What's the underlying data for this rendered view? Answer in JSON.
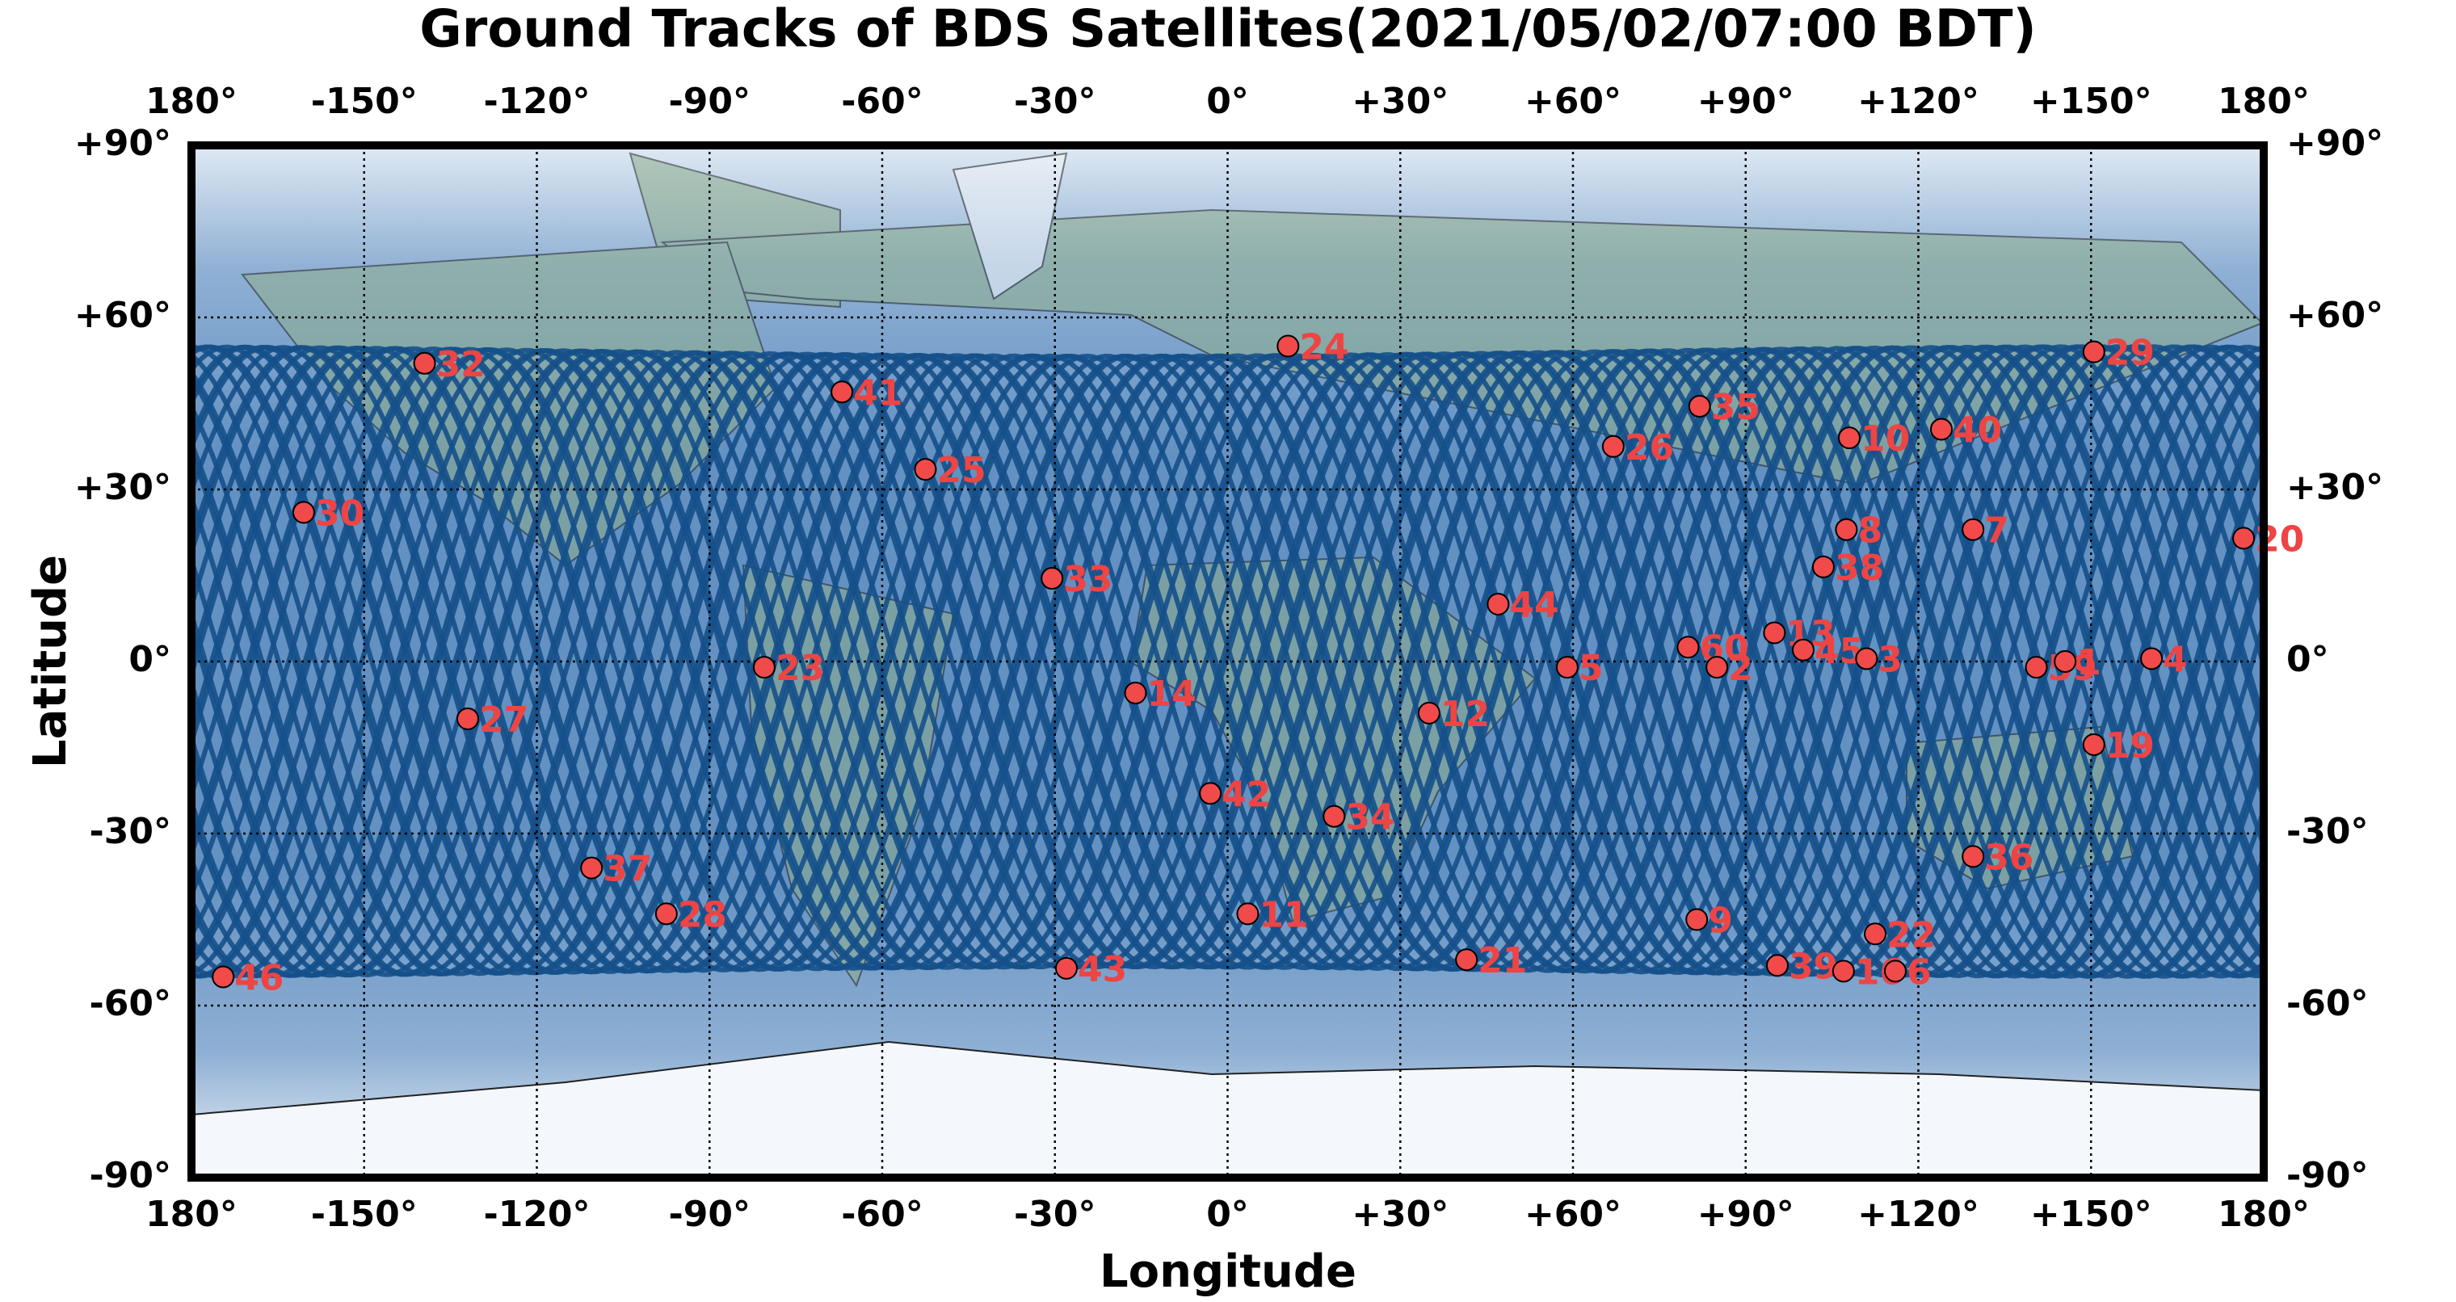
{
  "chart_data": {
    "type": "scatter",
    "title": "Ground Tracks of BDS Satellites(2021/05/02/07:00 BDT)",
    "x_label": "Longitude",
    "y_label": "Latitude",
    "xlim": [
      -180,
      180
    ],
    "ylim": [
      -90,
      90
    ],
    "xticks": [
      {
        "value": -180,
        "label": "180°"
      },
      {
        "value": -150,
        "label": "-150°"
      },
      {
        "value": -120,
        "label": "-120°"
      },
      {
        "value": -90,
        "label": "-90°"
      },
      {
        "value": -60,
        "label": "-60°"
      },
      {
        "value": -30,
        "label": "-30°"
      },
      {
        "value": 0,
        "label": "0°"
      },
      {
        "value": 30,
        "label": "+30°"
      },
      {
        "value": 60,
        "label": "+60°"
      },
      {
        "value": 90,
        "label": "+90°"
      },
      {
        "value": 120,
        "label": "+120°"
      },
      {
        "value": 150,
        "label": "+150°"
      },
      {
        "value": 180,
        "label": "180°"
      }
    ],
    "yticks": [
      {
        "value": -90,
        "label": "-90°"
      },
      {
        "value": -60,
        "label": "-60°"
      },
      {
        "value": -30,
        "label": "-30°"
      },
      {
        "value": 0,
        "label": "0°"
      },
      {
        "value": 30,
        "label": "+30°"
      },
      {
        "value": 60,
        "label": "+60°"
      },
      {
        "value": 90,
        "label": "+90°"
      }
    ],
    "grid": true,
    "point_color": "#f04a4a",
    "label_color": "#ee4444",
    "track_color": "#15508a",
    "labels": [
      "32",
      "41",
      "24",
      "29",
      "35",
      "10",
      "40",
      "26",
      "25",
      "30",
      "8",
      "7",
      "20",
      "38",
      "33",
      "44",
      "13",
      "60",
      "45",
      "2",
      "3",
      "4",
      "59",
      "1",
      "23",
      "5",
      "14",
      "12",
      "27",
      "19",
      "42",
      "34",
      "36",
      "37",
      "28",
      "11",
      "9",
      "22",
      "21",
      "39",
      "16",
      "6",
      "43",
      "46"
    ],
    "x": [
      -139.5,
      -67,
      10.5,
      150.5,
      82,
      108,
      124,
      67,
      -52.5,
      -160.5,
      107.5,
      129.5,
      176.5,
      103.5,
      -30.5,
      47,
      95,
      80,
      100,
      85,
      111,
      160.5,
      140.5,
      145.5,
      -80.5,
      59,
      -16,
      35,
      -132,
      150.5,
      -3,
      18.5,
      129.5,
      -110.5,
      -97.5,
      3.5,
      81.5,
      112.5,
      41.5,
      95.5,
      107,
      116,
      -28,
      -174.5
    ],
    "y": [
      52,
      47,
      55,
      54,
      44.5,
      39,
      40.5,
      37.5,
      33.5,
      26,
      23,
      23,
      21.5,
      16.5,
      14.5,
      10,
      5,
      2.5,
      2,
      -1,
      0.5,
      0.5,
      -1,
      0,
      -1,
      -1,
      -5.5,
      -9,
      -10,
      -14.5,
      -23,
      -27,
      -34,
      -36,
      -44,
      -44,
      -45,
      -47.5,
      -52,
      -53,
      -54,
      -54,
      -53.5,
      -55
    ]
  }
}
